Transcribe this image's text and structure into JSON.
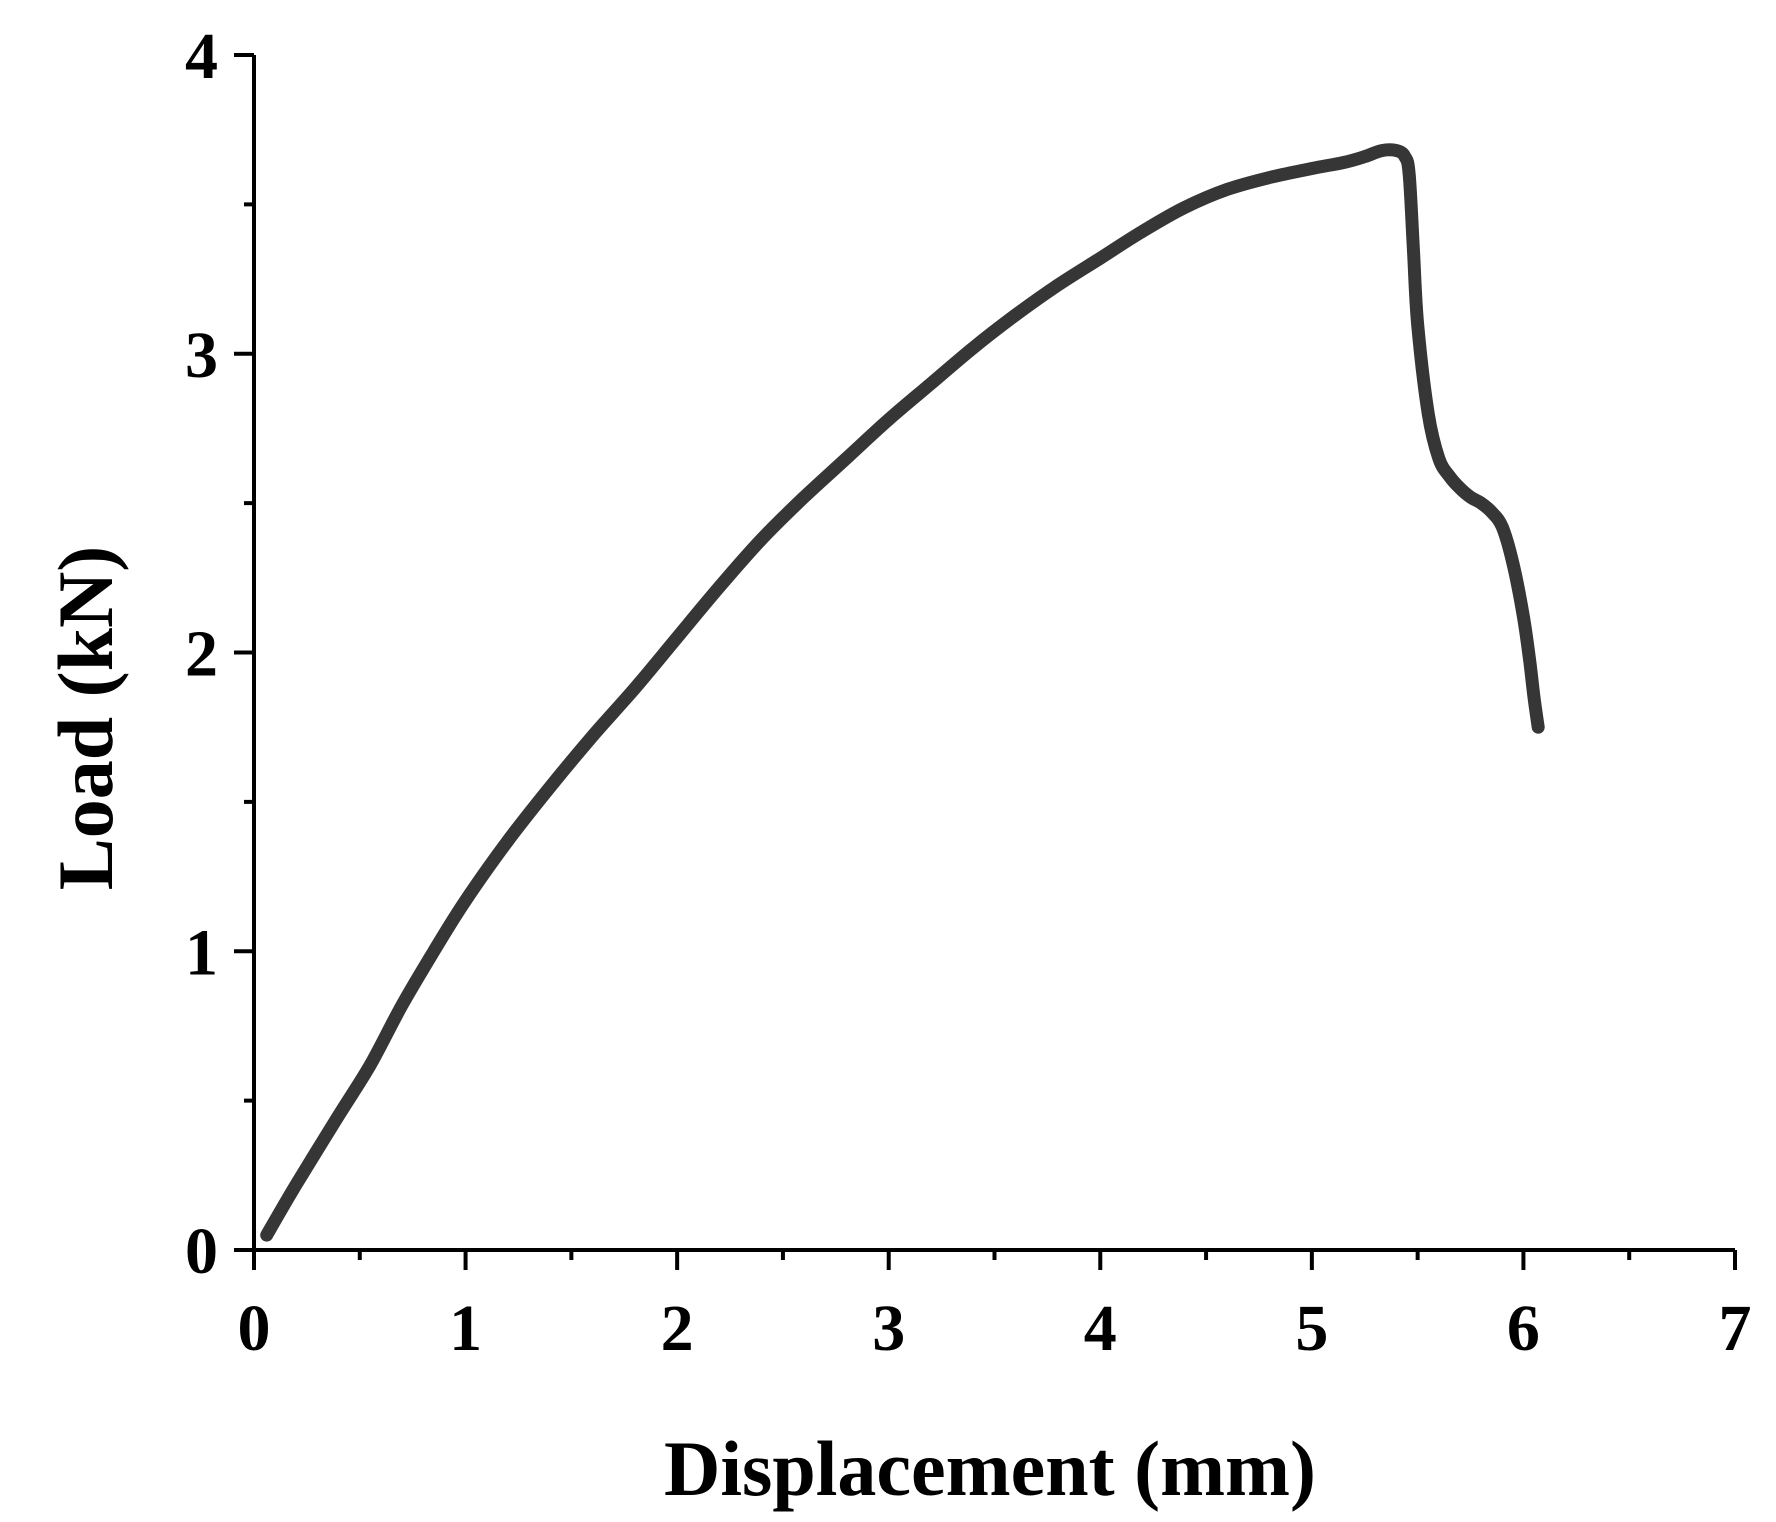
{
  "chart_data": {
    "type": "line",
    "title": "",
    "xlabel": "Displacement (mm)",
    "ylabel": "Load (kN)",
    "xlim": [
      0,
      7
    ],
    "ylim": [
      0,
      4
    ],
    "x_ticks": [
      0,
      1,
      2,
      3,
      4,
      5,
      6,
      7
    ],
    "x_tick_labels": [
      "0",
      "1",
      "2",
      "3",
      "4",
      "5",
      "6",
      "7"
    ],
    "x_minor_ticks": [
      0.5,
      1.5,
      2.5,
      3.5,
      4.5,
      5.5,
      6.5
    ],
    "y_ticks": [
      0,
      1,
      2,
      3,
      4
    ],
    "y_tick_labels": [
      "0",
      "1",
      "2",
      "3",
      "4"
    ],
    "y_minor_ticks": [
      0.5,
      1.5,
      2.5,
      3.5
    ],
    "grid": false,
    "legend": "none",
    "line_color": "#363636",
    "series": [
      {
        "name": "",
        "x": [
          0.06,
          0.2,
          0.4,
          0.55,
          0.7,
          0.85,
          1.0,
          1.2,
          1.4,
          1.6,
          1.8,
          2.0,
          2.2,
          2.4,
          2.6,
          2.8,
          3.0,
          3.2,
          3.4,
          3.6,
          3.8,
          4.0,
          4.2,
          4.4,
          4.6,
          4.8,
          5.0,
          5.15,
          5.25,
          5.33,
          5.4,
          5.44,
          5.46,
          5.48,
          5.5,
          5.55,
          5.6,
          5.65,
          5.7,
          5.75,
          5.8,
          5.85,
          5.9,
          5.95,
          6.0,
          6.03,
          6.05,
          6.07
        ],
        "y": [
          0.05,
          0.22,
          0.45,
          0.62,
          0.82,
          1.0,
          1.17,
          1.37,
          1.55,
          1.72,
          1.88,
          2.05,
          2.22,
          2.38,
          2.52,
          2.65,
          2.78,
          2.9,
          3.02,
          3.13,
          3.23,
          3.32,
          3.41,
          3.49,
          3.55,
          3.59,
          3.62,
          3.64,
          3.66,
          3.68,
          3.68,
          3.66,
          3.6,
          3.35,
          3.1,
          2.8,
          2.65,
          2.59,
          2.55,
          2.52,
          2.5,
          2.47,
          2.42,
          2.3,
          2.12,
          1.97,
          1.85,
          1.75
        ]
      }
    ]
  }
}
